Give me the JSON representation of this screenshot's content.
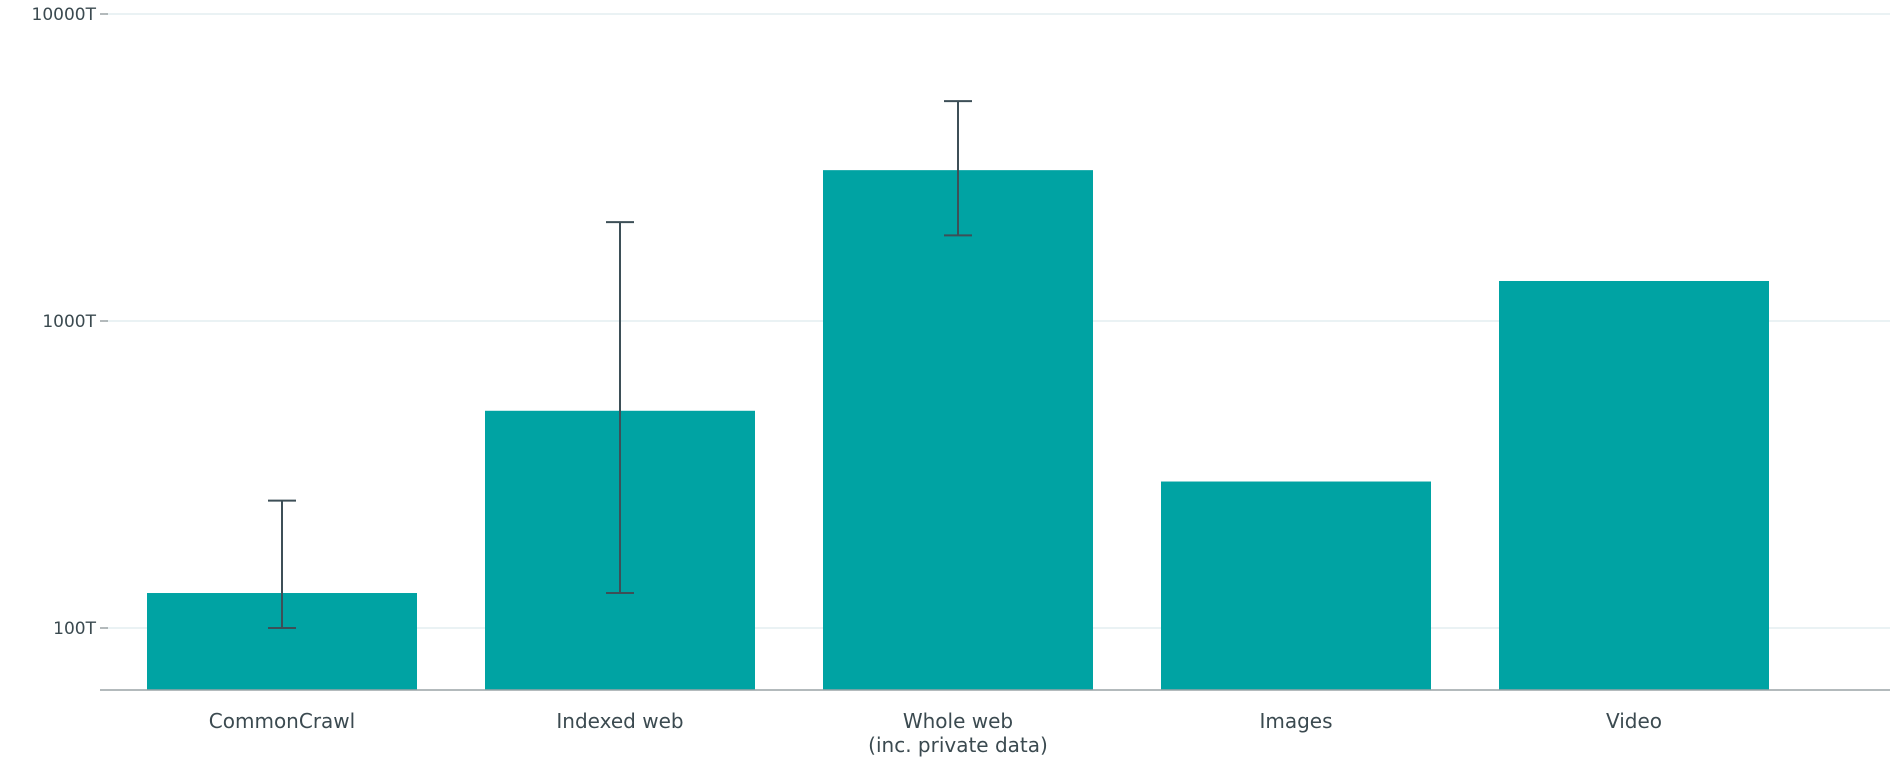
{
  "chart_data": {
    "type": "bar",
    "title": "",
    "xlabel": "",
    "ylabel": "",
    "y_scale": "log",
    "ylim": [
      60,
      10000
    ],
    "y_ticks": [
      {
        "value": 100,
        "label": "100T"
      },
      {
        "value": 1000,
        "label": "1000T"
      },
      {
        "value": 10000,
        "label": "10000T"
      }
    ],
    "grid": true,
    "legend": "none",
    "bar_color": "#00a3a3",
    "error_bar_color": "#3d4f57",
    "categories": [
      {
        "label_lines": [
          "CommonCrawl"
        ],
        "value": 130,
        "error_low": 100,
        "error_high": 260
      },
      {
        "label_lines": [
          "Indexed web"
        ],
        "value": 510,
        "error_low": 130,
        "error_high": 2100
      },
      {
        "label_lines": [
          "Whole web",
          "(inc. private data)"
        ],
        "value": 3100,
        "error_low": 1900,
        "error_high": 5200
      },
      {
        "label_lines": [
          "Images"
        ],
        "value": 300,
        "error_low": null,
        "error_high": null
      },
      {
        "label_lines": [
          "Video"
        ],
        "value": 1350,
        "error_low": null,
        "error_high": null
      }
    ]
  }
}
